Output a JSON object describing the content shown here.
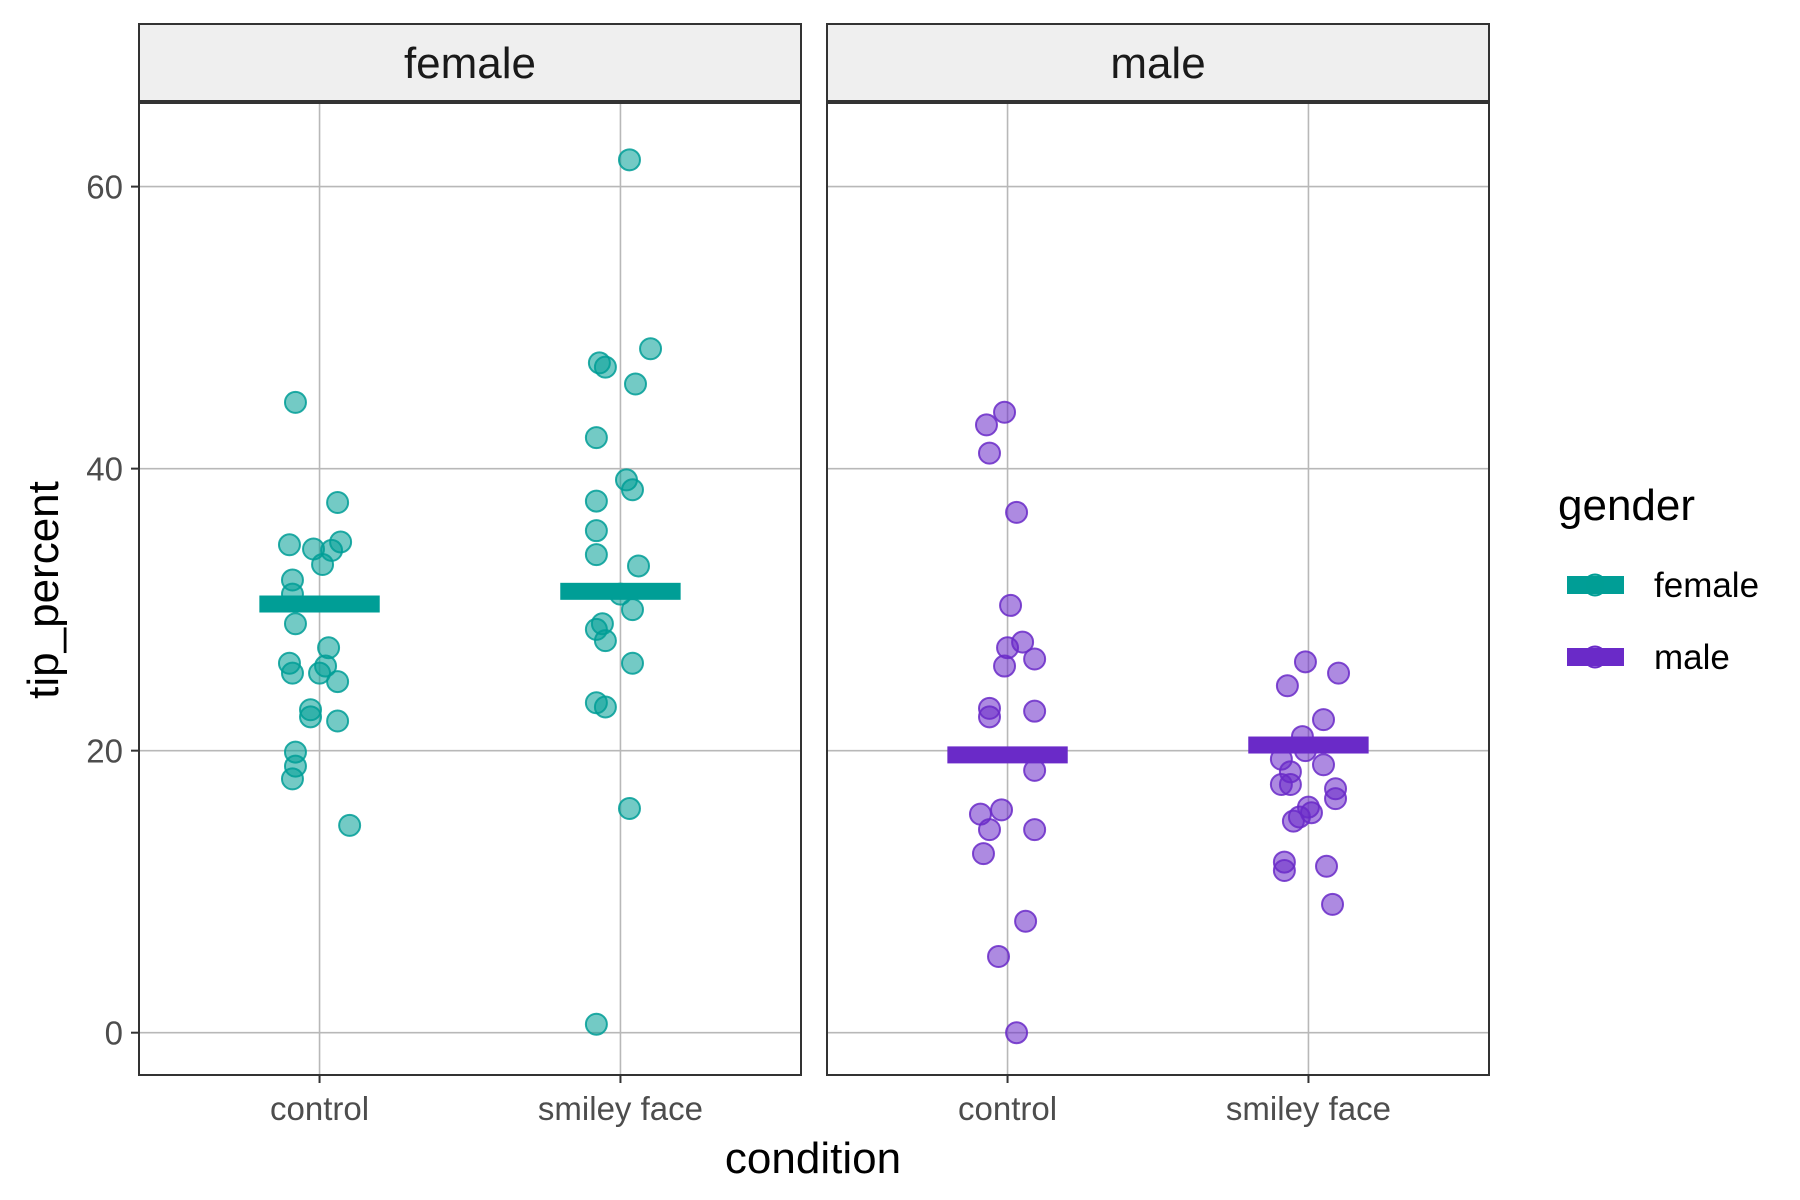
{
  "chart_data": {
    "type": "scatter",
    "subtype": "faceted jittered strip plot with group means",
    "facet_variable": "gender",
    "facets": [
      "female",
      "male"
    ],
    "categories": [
      "control",
      "smiley face"
    ],
    "xlabel": "condition",
    "ylabel": "tip_percent",
    "ylim": [
      -3,
      66
    ],
    "yticks": [
      0,
      20,
      40,
      60
    ],
    "grid": true,
    "legend": {
      "title": "gender",
      "position": "right",
      "entries": [
        {
          "label": "female",
          "color": "#009E96"
        },
        {
          "label": "male",
          "color": "#6A2AC8"
        }
      ]
    },
    "series": [
      {
        "name": "female",
        "color": "#009E96",
        "groups": [
          {
            "category": "control",
            "mean": 30.4,
            "points": [
              [
                -0.08,
                44.7
              ],
              [
                0.06,
                37.6
              ],
              [
                -0.1,
                34.6
              ],
              [
                0.07,
                34.8
              ],
              [
                -0.02,
                34.3
              ],
              [
                0.04,
                34.2
              ],
              [
                0.01,
                33.2
              ],
              [
                -0.09,
                32.1
              ],
              [
                -0.09,
                31.1
              ],
              [
                -0.08,
                29.0
              ],
              [
                0.03,
                27.3
              ],
              [
                -0.1,
                26.2
              ],
              [
                0.02,
                26.0
              ],
              [
                -0.09,
                25.5
              ],
              [
                0.0,
                25.5
              ],
              [
                0.06,
                24.9
              ],
              [
                -0.03,
                22.9
              ],
              [
                -0.03,
                22.4
              ],
              [
                0.06,
                22.1
              ],
              [
                -0.08,
                19.9
              ],
              [
                -0.08,
                18.9
              ],
              [
                -0.09,
                18.0
              ],
              [
                0.1,
                14.7
              ]
            ]
          },
          {
            "category": "smiley face",
            "mean": 31.3,
            "points": [
              [
                0.03,
                61.9
              ],
              [
                0.1,
                48.5
              ],
              [
                -0.07,
                47.5
              ],
              [
                -0.05,
                47.2
              ],
              [
                0.05,
                46.0
              ],
              [
                -0.08,
                42.2
              ],
              [
                0.02,
                39.2
              ],
              [
                0.04,
                38.5
              ],
              [
                -0.08,
                37.7
              ],
              [
                -0.08,
                35.6
              ],
              [
                -0.08,
                33.9
              ],
              [
                0.06,
                33.1
              ],
              [
                0.0,
                31.1
              ],
              [
                -0.06,
                29.0
              ],
              [
                -0.08,
                28.6
              ],
              [
                -0.05,
                27.8
              ],
              [
                0.04,
                30.0
              ],
              [
                0.04,
                26.2
              ],
              [
                -0.08,
                23.4
              ],
              [
                -0.05,
                23.1
              ],
              [
                0.03,
                15.9
              ],
              [
                -0.08,
                0.6
              ]
            ]
          }
        ]
      },
      {
        "name": "male",
        "color": "#6A2AC8",
        "groups": [
          {
            "category": "control",
            "mean": 19.7,
            "points": [
              [
                -0.07,
                43.1
              ],
              [
                -0.01,
                44.0
              ],
              [
                -0.06,
                41.1
              ],
              [
                0.03,
                36.9
              ],
              [
                0.01,
                30.3
              ],
              [
                0.05,
                27.7
              ],
              [
                0.0,
                27.3
              ],
              [
                -0.01,
                26.0
              ],
              [
                0.09,
                26.5
              ],
              [
                -0.06,
                23.0
              ],
              [
                -0.06,
                22.4
              ],
              [
                0.09,
                22.8
              ],
              [
                0.09,
                18.6
              ],
              [
                -0.09,
                15.5
              ],
              [
                -0.02,
                15.8
              ],
              [
                -0.06,
                14.4
              ],
              [
                0.09,
                14.4
              ],
              [
                -0.08,
                12.7
              ],
              [
                0.06,
                7.9
              ],
              [
                -0.03,
                5.4
              ],
              [
                0.03,
                0.0
              ]
            ]
          },
          {
            "category": "smiley face",
            "mean": 20.4,
            "points": [
              [
                -0.01,
                26.3
              ],
              [
                0.1,
                25.5
              ],
              [
                -0.07,
                24.6
              ],
              [
                0.05,
                22.2
              ],
              [
                -0.02,
                21.0
              ],
              [
                -0.01,
                20.0
              ],
              [
                -0.09,
                19.4
              ],
              [
                0.05,
                19.0
              ],
              [
                -0.06,
                18.5
              ],
              [
                -0.09,
                17.6
              ],
              [
                -0.06,
                17.6
              ],
              [
                0.09,
                17.3
              ],
              [
                0.09,
                16.6
              ],
              [
                0.0,
                16.0
              ],
              [
                0.01,
                15.6
              ],
              [
                -0.03,
                15.3
              ],
              [
                -0.05,
                15.0
              ],
              [
                -0.08,
                12.1
              ],
              [
                -0.08,
                11.5
              ],
              [
                0.06,
                11.8
              ],
              [
                0.08,
                9.1
              ]
            ]
          }
        ]
      }
    ]
  }
}
